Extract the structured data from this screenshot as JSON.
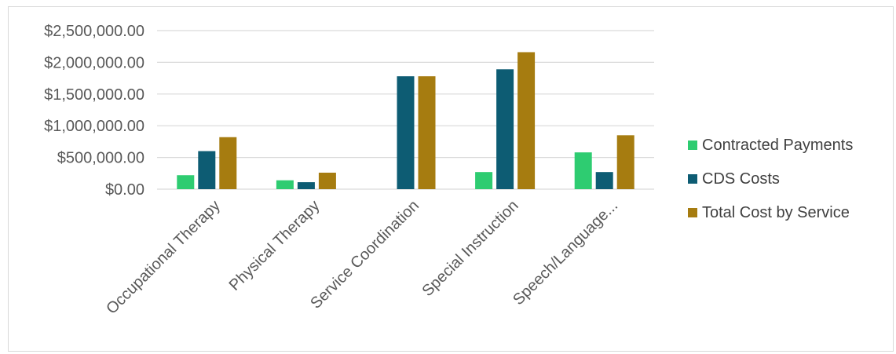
{
  "chart_data": {
    "type": "bar",
    "categories": [
      "Occupational Therapy",
      "Physical Therapy",
      "Service Coordination",
      "Special Instruction",
      "Speech/Language..."
    ],
    "series": [
      {
        "name": "Contracted Payments",
        "color": "#2ecc71",
        "values": [
          220000,
          140000,
          0,
          270000,
          580000
        ]
      },
      {
        "name": "CDS Costs",
        "color": "#0d5c73",
        "values": [
          600000,
          110000,
          1780000,
          1890000,
          270000
        ]
      },
      {
        "name": "Total Cost by Service",
        "color": "#a67c10",
        "values": [
          820000,
          260000,
          1780000,
          2160000,
          850000
        ]
      }
    ],
    "yticks": [
      "$0.00",
      "$500,000.00",
      "$1,000,000.00",
      "$1,500,000.00",
      "$2,000,000.00",
      "$2,500,000.00"
    ],
    "ylim": [
      0,
      2500000
    ],
    "grid": true,
    "legend_position": "right"
  }
}
